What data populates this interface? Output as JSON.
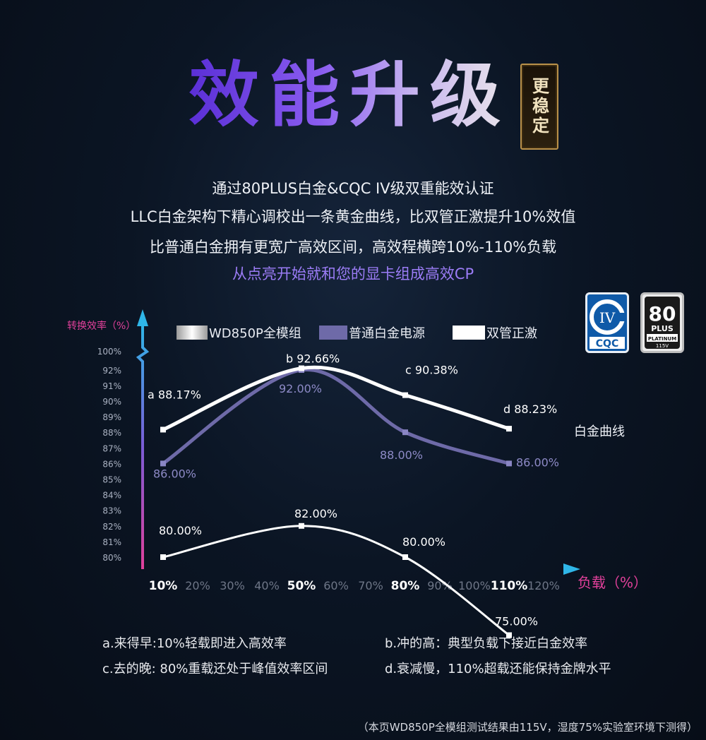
{
  "header": {
    "title": "效能升级",
    "seal_text": "更稳定",
    "lines": [
      "通过80PLUS白金&CQC IV级双重能效认证",
      "LLC白金架构下精心调校出一条黄金曲线，比双管正激提升10%效值",
      "比普通白金拥有更宽广高效区间，高效程横跨10%-110%负载",
      "从点亮开始就和您的显卡组成高效CP"
    ]
  },
  "badges": {
    "cqc": {
      "roman": "IV",
      "text": "CQC"
    },
    "plus": {
      "big": "80",
      "mid": "PLUS",
      "small": "PLATINUM",
      "tiny": "115V"
    }
  },
  "colors": {
    "wd850p": "#ffffff",
    "normal": "#6e6aa8",
    "forward": "#ffffff",
    "accent": "#9b7cf6",
    "axis": "#2fb6e8"
  },
  "chart_data": {
    "type": "line",
    "ylabel": "转换效率（%）",
    "xlabel": "负载（%）",
    "x_ticks": [
      "10%",
      "20%",
      "30%",
      "40%",
      "50%",
      "60%",
      "70%",
      "80%",
      "90%",
      "100%",
      "110%",
      "120%"
    ],
    "x_bold": [
      "10%",
      "50%",
      "80%",
      "110%"
    ],
    "y_ticks": [
      "80%",
      "81%",
      "82%",
      "83%",
      "84%",
      "85%",
      "86%",
      "87%",
      "88%",
      "89%",
      "90%",
      "91%",
      "92%",
      "100%"
    ],
    "axis_break": true,
    "series": [
      {
        "name": "WD850P全模组",
        "x": [
          10,
          50,
          80,
          110
        ],
        "y": [
          88.17,
          92.66,
          90.38,
          88.23
        ],
        "labels": [
          "a 88.17%",
          "b 92.66%",
          "c 90.38%",
          "d 88.23%"
        ]
      },
      {
        "name": "普通白金电源",
        "x": [
          10,
          50,
          80,
          110
        ],
        "y": [
          86.0,
          92.0,
          88.0,
          86.0
        ],
        "labels": [
          "86.00%",
          "92.00%",
          "88.00%",
          "86.00%"
        ]
      },
      {
        "name": "双管正激",
        "x": [
          10,
          50,
          80,
          110
        ],
        "y": [
          80.0,
          82.0,
          80.0,
          75.0
        ],
        "labels": [
          "80.00%",
          "82.00%",
          "80.00%",
          "75.00%"
        ]
      }
    ],
    "annotation": "白金曲线"
  },
  "notes": [
    "a.来得早:10%轻载即进入高效率",
    "b.冲的高：典型负载下接近白金效率",
    "c.去的晚: 80%重载还处于峰值效率区间",
    "d.衰减慢，110%超载还能保持金牌水平"
  ],
  "footnote": "（本页WD850P全模组测试结果由115V，湿度75%实验室环境下测得）"
}
